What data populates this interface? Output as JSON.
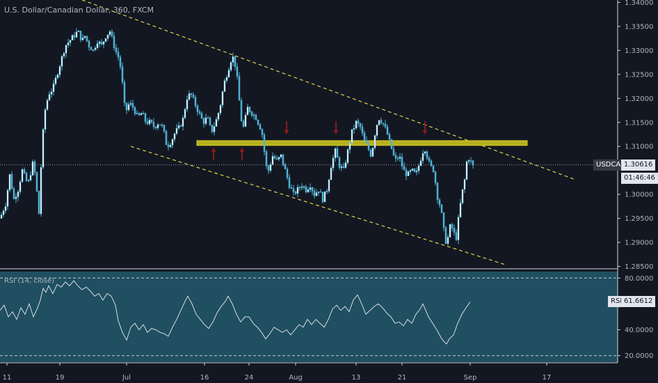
{
  "header": {
    "title": "U.S. Dollar/Canadian Dollar, 360, FXCM"
  },
  "indicator": {
    "title": "RSI (14, close)",
    "tag_label": "RSI",
    "tag_value": "61.6612"
  },
  "price_tags": {
    "symbol": "USDCAD",
    "price": "1.30616",
    "countdown": "01:46:46"
  },
  "colors": {
    "background": "#131722",
    "candle": "#4fb3d6",
    "trendline": "#e0d24a",
    "zone": "#b8b11c",
    "arrow": "#8b1b1b",
    "rsi_fill": "#1f4f60",
    "rsi_line": "#d8dde5"
  },
  "chart_data": [
    {
      "type": "candlestick",
      "title": "U.S. Dollar/Canadian Dollar, 360, FXCM",
      "x_ticks": [
        "11",
        "19",
        "Jul",
        "16",
        "24",
        "Aug",
        "13",
        "21",
        "Sep",
        "17"
      ],
      "y_ticks": [
        "1.34000",
        "1.33500",
        "1.33000",
        "1.32500",
        "1.32000",
        "1.31500",
        "1.31000",
        "1.30000",
        "1.29500",
        "1.29000",
        "1.28500"
      ],
      "ylim": [
        1.2845,
        1.3405
      ],
      "last_price": 1.30616,
      "price_path": [
        [
          0,
          1.295
        ],
        [
          8,
          1.298
        ],
        [
          14,
          1.304
        ],
        [
          20,
          1.299
        ],
        [
          26,
          1.301
        ],
        [
          32,
          1.305
        ],
        [
          40,
          1.302
        ],
        [
          48,
          1.307
        ],
        [
          52,
          1.302
        ],
        [
          56,
          1.296
        ],
        [
          60,
          1.309
        ],
        [
          64,
          1.317
        ],
        [
          70,
          1.321
        ],
        [
          76,
          1.322
        ],
        [
          82,
          1.325
        ],
        [
          88,
          1.328
        ],
        [
          94,
          1.331
        ],
        [
          100,
          1.332
        ],
        [
          106,
          1.333
        ],
        [
          112,
          1.334
        ],
        [
          118,
          1.332
        ],
        [
          122,
          1.333
        ],
        [
          128,
          1.331
        ],
        [
          134,
          1.33
        ],
        [
          140,
          1.332
        ],
        [
          146,
          1.331
        ],
        [
          152,
          1.333
        ],
        [
          158,
          1.334
        ],
        [
          162,
          1.332
        ],
        [
          166,
          1.33
        ],
        [
          172,
          1.328
        ],
        [
          176,
          1.323
        ],
        [
          180,
          1.317
        ],
        [
          186,
          1.319
        ],
        [
          192,
          1.318
        ],
        [
          198,
          1.316
        ],
        [
          204,
          1.317
        ],
        [
          210,
          1.315
        ],
        [
          216,
          1.315
        ],
        [
          222,
          1.314
        ],
        [
          228,
          1.315
        ],
        [
          234,
          1.314
        ],
        [
          240,
          1.31
        ],
        [
          246,
          1.311
        ],
        [
          252,
          1.313
        ],
        [
          258,
          1.314
        ],
        [
          264,
          1.316
        ],
        [
          268,
          1.32
        ],
        [
          274,
          1.321
        ],
        [
          280,
          1.319
        ],
        [
          286,
          1.317
        ],
        [
          292,
          1.315
        ],
        [
          298,
          1.316
        ],
        [
          304,
          1.313
        ],
        [
          310,
          1.315
        ],
        [
          316,
          1.318
        ],
        [
          322,
          1.323
        ],
        [
          328,
          1.326
        ],
        [
          334,
          1.329
        ],
        [
          338,
          1.327
        ],
        [
          342,
          1.323
        ],
        [
          346,
          1.316
        ],
        [
          350,
          1.314
        ],
        [
          356,
          1.318
        ],
        [
          362,
          1.317
        ],
        [
          368,
          1.316
        ],
        [
          374,
          1.314
        ],
        [
          378,
          1.312
        ],
        [
          382,
          1.306
        ],
        [
          386,
          1.305
        ],
        [
          392,
          1.308
        ],
        [
          398,
          1.307
        ],
        [
          404,
          1.308
        ],
        [
          410,
          1.305
        ],
        [
          416,
          1.302
        ],
        [
          422,
          1.3
        ],
        [
          428,
          1.301
        ],
        [
          434,
          1.302
        ],
        [
          440,
          1.301
        ],
        [
          446,
          1.302
        ],
        [
          452,
          1.3
        ],
        [
          458,
          1.301
        ],
        [
          464,
          1.299
        ],
        [
          470,
          1.301
        ],
        [
          476,
          1.306
        ],
        [
          482,
          1.309
        ],
        [
          488,
          1.306
        ],
        [
          494,
          1.305
        ],
        [
          500,
          1.309
        ],
        [
          506,
          1.313
        ],
        [
          512,
          1.315
        ],
        [
          518,
          1.314
        ],
        [
          524,
          1.311
        ],
        [
          528,
          1.31
        ],
        [
          534,
          1.308
        ],
        [
          538,
          1.312
        ],
        [
          544,
          1.316
        ],
        [
          550,
          1.315
        ],
        [
          556,
          1.313
        ],
        [
          562,
          1.31
        ],
        [
          568,
          1.307
        ],
        [
          574,
          1.308
        ],
        [
          580,
          1.305
        ],
        [
          586,
          1.304
        ],
        [
          592,
          1.305
        ],
        [
          598,
          1.304
        ],
        [
          604,
          1.307
        ],
        [
          610,
          1.31
        ],
        [
          614,
          1.308
        ],
        [
          618,
          1.306
        ],
        [
          624,
          1.305
        ],
        [
          628,
          1.3
        ],
        [
          632,
          1.298
        ],
        [
          636,
          1.295
        ],
        [
          640,
          1.29
        ],
        [
          644,
          1.291
        ],
        [
          648,
          1.294
        ],
        [
          652,
          1.292
        ],
        [
          656,
          1.291
        ],
        [
          660,
          1.296
        ],
        [
          664,
          1.3
        ],
        [
          668,
          1.303
        ],
        [
          672,
          1.308
        ],
        [
          676,
          1.307
        ],
        [
          680,
          1.30616
        ]
      ],
      "lines": {
        "upper_channel": [
          [
            118,
            1.3405
          ],
          [
            825,
            1.3032
          ]
        ],
        "lower_channel": [
          [
            188,
            1.31
          ],
          [
            728,
            1.2853
          ]
        ],
        "resistance_zone": {
          "x": [
            283,
            758
          ],
          "y": [
            1.3102,
            1.3112
          ]
        }
      },
      "arrows": [
        {
          "x": 307,
          "dir": "up"
        },
        {
          "x": 348,
          "dir": "up"
        },
        {
          "x": 412,
          "dir": "down"
        },
        {
          "x": 483,
          "dir": "down"
        },
        {
          "x": 611,
          "dir": "down"
        }
      ]
    },
    {
      "type": "line",
      "title": "RSI (14, close)",
      "y_ticks": [
        "80.0000",
        "40.0000",
        "20.0000"
      ],
      "ylim": [
        15,
        85
      ],
      "bands": [
        80,
        20
      ],
      "last_value": 61.6612,
      "values_path": [
        [
          0,
          55
        ],
        [
          6,
          59
        ],
        [
          12,
          50
        ],
        [
          18,
          54
        ],
        [
          24,
          48
        ],
        [
          30,
          57
        ],
        [
          36,
          52
        ],
        [
          42,
          60
        ],
        [
          48,
          50
        ],
        [
          54,
          57
        ],
        [
          58,
          63
        ],
        [
          62,
          72
        ],
        [
          66,
          69
        ],
        [
          70,
          74
        ],
        [
          76,
          68
        ],
        [
          82,
          75
        ],
        [
          88,
          73
        ],
        [
          94,
          77
        ],
        [
          100,
          74
        ],
        [
          106,
          78
        ],
        [
          112,
          74
        ],
        [
          118,
          71
        ],
        [
          124,
          73
        ],
        [
          130,
          70
        ],
        [
          136,
          66
        ],
        [
          142,
          68
        ],
        [
          148,
          63
        ],
        [
          154,
          68
        ],
        [
          160,
          66
        ],
        [
          166,
          59
        ],
        [
          170,
          47
        ],
        [
          176,
          38
        ],
        [
          182,
          32
        ],
        [
          188,
          42
        ],
        [
          194,
          45
        ],
        [
          200,
          40
        ],
        [
          206,
          44
        ],
        [
          212,
          38
        ],
        [
          218,
          41
        ],
        [
          224,
          40
        ],
        [
          230,
          38
        ],
        [
          236,
          37
        ],
        [
          242,
          35
        ],
        [
          248,
          42
        ],
        [
          254,
          48
        ],
        [
          260,
          55
        ],
        [
          266,
          62
        ],
        [
          270,
          66
        ],
        [
          276,
          60
        ],
        [
          282,
          52
        ],
        [
          288,
          48
        ],
        [
          294,
          44
        ],
        [
          300,
          41
        ],
        [
          306,
          46
        ],
        [
          312,
          53
        ],
        [
          318,
          58
        ],
        [
          324,
          62
        ],
        [
          328,
          66
        ],
        [
          334,
          60
        ],
        [
          340,
          52
        ],
        [
          346,
          46
        ],
        [
          352,
          50
        ],
        [
          358,
          50
        ],
        [
          364,
          45
        ],
        [
          370,
          42
        ],
        [
          376,
          38
        ],
        [
          382,
          33
        ],
        [
          388,
          37
        ],
        [
          394,
          42
        ],
        [
          400,
          40
        ],
        [
          406,
          38
        ],
        [
          412,
          40
        ],
        [
          418,
          36
        ],
        [
          424,
          40
        ],
        [
          430,
          44
        ],
        [
          436,
          42
        ],
        [
          442,
          48
        ],
        [
          448,
          44
        ],
        [
          454,
          48
        ],
        [
          460,
          45
        ],
        [
          466,
          42
        ],
        [
          472,
          48
        ],
        [
          478,
          56
        ],
        [
          484,
          59
        ],
        [
          490,
          55
        ],
        [
          496,
          58
        ],
        [
          502,
          54
        ],
        [
          508,
          63
        ],
        [
          514,
          67
        ],
        [
          520,
          60
        ],
        [
          526,
          52
        ],
        [
          532,
          55
        ],
        [
          538,
          58
        ],
        [
          544,
          60
        ],
        [
          550,
          57
        ],
        [
          556,
          53
        ],
        [
          562,
          50
        ],
        [
          568,
          45
        ],
        [
          574,
          46
        ],
        [
          580,
          43
        ],
        [
          586,
          48
        ],
        [
          592,
          45
        ],
        [
          598,
          52
        ],
        [
          604,
          56
        ],
        [
          608,
          60
        ],
        [
          612,
          55
        ],
        [
          616,
          50
        ],
        [
          622,
          45
        ],
        [
          628,
          40
        ],
        [
          634,
          34
        ],
        [
          638,
          31
        ],
        [
          642,
          29
        ],
        [
          646,
          33
        ],
        [
          652,
          36
        ],
        [
          658,
          45
        ],
        [
          664,
          52
        ],
        [
          670,
          57
        ],
        [
          676,
          61.66
        ]
      ]
    }
  ]
}
